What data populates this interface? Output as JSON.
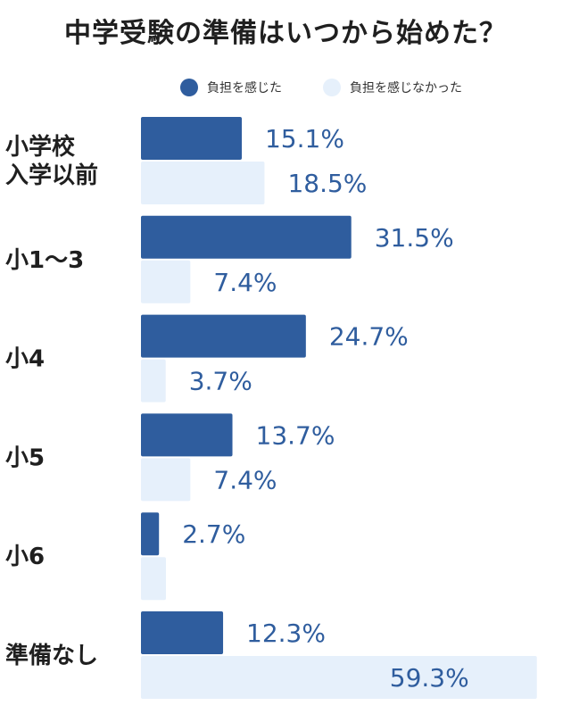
{
  "chart_data": {
    "type": "bar",
    "orientation": "horizontal",
    "title": "中学受験の準備はいつから始めた？",
    "categories": [
      [
        "小学校",
        "入学以前"
      ],
      [
        "小1〜3"
      ],
      [
        "小4"
      ],
      [
        "小5"
      ],
      [
        "小6"
      ],
      [
        "準備なし"
      ]
    ],
    "series": [
      {
        "name": "負担を感じた",
        "color": "#2f5d9e",
        "values": [
          15.1,
          31.5,
          24.7,
          13.7,
          2.7,
          12.3
        ],
        "labels": [
          "15.1%",
          "31.5%",
          "24.7%",
          "13.7%",
          "2.7%",
          "12.3%"
        ]
      },
      {
        "name": "負担を感じなかった",
        "color": "#e6f0fb",
        "values": [
          18.5,
          7.4,
          3.7,
          7.4,
          null,
          59.3
        ],
        "labels": [
          "18.5%",
          "7.4%",
          "3.7%",
          "7.4%",
          "",
          "59.3%"
        ]
      }
    ],
    "xlim": [
      0,
      60
    ],
    "grid": false,
    "legend_position": "top-right"
  }
}
